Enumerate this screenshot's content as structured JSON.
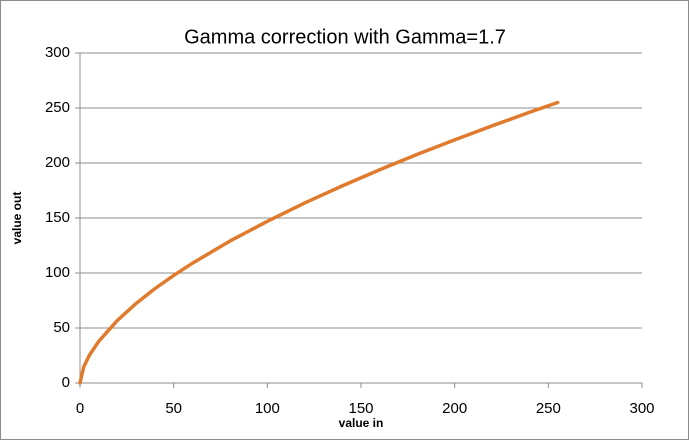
{
  "chart_data": {
    "type": "line",
    "title": "Gamma correction with Gamma=1.7",
    "x_label": "value in",
    "y_label": "value out",
    "x": [
      0,
      2,
      5,
      10,
      20,
      30,
      40,
      50,
      60,
      80,
      100,
      120,
      140,
      160,
      180,
      200,
      220,
      240,
      255
    ],
    "series": [
      {
        "name": "value out",
        "color": "#e07b2e",
        "values": [
          0,
          14.7,
          25.2,
          37.9,
          57.0,
          72.4,
          85.8,
          97.8,
          108.9,
          129.0,
          147.0,
          163.7,
          179.2,
          193.9,
          207.8,
          221.0,
          233.8,
          246.1,
          255
        ]
      }
    ],
    "xlim": [
      0,
      300
    ],
    "xticks": [
      0,
      50,
      100,
      150,
      200,
      250,
      300
    ],
    "ylim": [
      0,
      300
    ],
    "yticks": [
      0,
      50,
      100,
      150,
      200,
      250,
      300
    ],
    "grid": true
  }
}
